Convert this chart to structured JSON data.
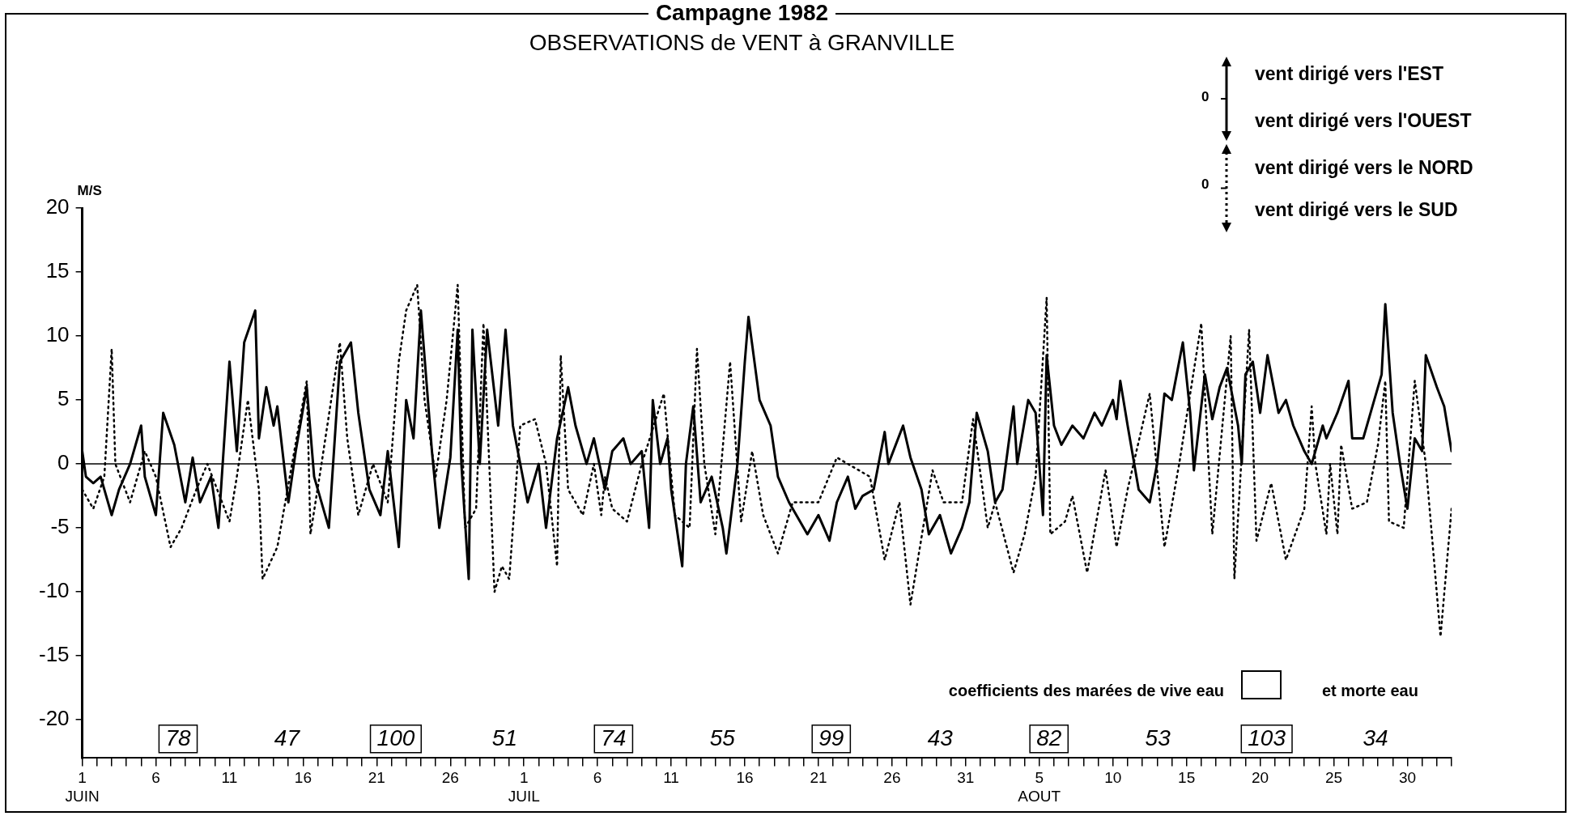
{
  "chart_data": {
    "type": "line",
    "title": "Campagne 1982",
    "subtitle": "OBSERVATIONS de VENT à GRANVILLE",
    "ylabel": "M/S",
    "ylim": [
      -23,
      20
    ],
    "yticks": [
      -20,
      -15,
      -10,
      -5,
      0,
      5,
      10,
      15,
      20
    ],
    "xlim": [
      "1982-06-01",
      "1982-09-02"
    ],
    "xticks": [
      {
        "value": "1982-06-01",
        "label": "1\nJUIN"
      },
      {
        "value": "1982-06-02",
        "label": null
      },
      {
        "value": "1982-06-03",
        "label": null
      },
      {
        "value": "1982-06-04",
        "label": null
      },
      {
        "value": "1982-06-05",
        "label": null
      },
      {
        "value": "1982-06-06",
        "label": "6"
      },
      {
        "value": "1982-06-07",
        "label": null
      },
      {
        "value": "1982-06-08",
        "label": null
      },
      {
        "value": "1982-06-09",
        "label": null
      },
      {
        "value": "1982-06-10",
        "label": null
      },
      {
        "value": "1982-06-11",
        "label": "11"
      },
      {
        "value": "1982-06-12",
        "label": null
      },
      {
        "value": "1982-06-13",
        "label": null
      },
      {
        "value": "1982-06-14",
        "label": null
      },
      {
        "value": "1982-06-15",
        "label": null
      },
      {
        "value": "1982-06-16",
        "label": "16"
      },
      {
        "value": "1982-06-17",
        "label": null
      },
      {
        "value": "1982-06-18",
        "label": null
      },
      {
        "value": "1982-06-19",
        "label": null
      },
      {
        "value": "1982-06-20",
        "label": null
      },
      {
        "value": "1982-06-21",
        "label": "21"
      },
      {
        "value": "1982-06-22",
        "label": null
      },
      {
        "value": "1982-06-23",
        "label": null
      },
      {
        "value": "1982-06-24",
        "label": null
      },
      {
        "value": "1982-06-25",
        "label": null
      },
      {
        "value": "1982-06-26",
        "label": "26"
      },
      {
        "value": "1982-06-27",
        "label": null
      },
      {
        "value": "1982-06-28",
        "label": null
      },
      {
        "value": "1982-06-29",
        "label": null
      },
      {
        "value": "1982-06-30",
        "label": null
      },
      {
        "value": "1982-07-01",
        "label": "1\nJUIL"
      },
      {
        "value": "1982-07-02",
        "label": null
      },
      {
        "value": "1982-07-03",
        "label": null
      },
      {
        "value": "1982-07-04",
        "label": null
      },
      {
        "value": "1982-07-05",
        "label": null
      },
      {
        "value": "1982-07-06",
        "label": "6"
      },
      {
        "value": "1982-07-07",
        "label": null
      },
      {
        "value": "1982-07-08",
        "label": null
      },
      {
        "value": "1982-07-09",
        "label": null
      },
      {
        "value": "1982-07-10",
        "label": null
      },
      {
        "value": "1982-07-11",
        "label": "11"
      },
      {
        "value": "1982-07-12",
        "label": null
      },
      {
        "value": "1982-07-13",
        "label": null
      },
      {
        "value": "1982-07-14",
        "label": null
      },
      {
        "value": "1982-07-15",
        "label": null
      },
      {
        "value": "1982-07-16",
        "label": "16"
      },
      {
        "value": "1982-07-17",
        "label": null
      },
      {
        "value": "1982-07-18",
        "label": null
      },
      {
        "value": "1982-07-19",
        "label": null
      },
      {
        "value": "1982-07-20",
        "label": null
      },
      {
        "value": "1982-07-21",
        "label": "21"
      },
      {
        "value": "1982-07-22",
        "label": null
      },
      {
        "value": "1982-07-23",
        "label": null
      },
      {
        "value": "1982-07-24",
        "label": null
      },
      {
        "value": "1982-07-25",
        "label": null
      },
      {
        "value": "1982-07-26",
        "label": "26"
      },
      {
        "value": "1982-07-27",
        "label": null
      },
      {
        "value": "1982-07-28",
        "label": null
      },
      {
        "value": "1982-07-29",
        "label": null
      },
      {
        "value": "1982-07-30",
        "label": null
      },
      {
        "value": "1982-07-31",
        "label": "31"
      },
      {
        "value": "1982-08-01",
        "label": null
      },
      {
        "value": "1982-08-02",
        "label": null
      },
      {
        "value": "1982-08-03",
        "label": null
      },
      {
        "value": "1982-08-04",
        "label": null
      },
      {
        "value": "1982-08-05",
        "label": "5\nAOUT"
      },
      {
        "value": "1982-08-06",
        "label": null
      },
      {
        "value": "1982-08-07",
        "label": null
      },
      {
        "value": "1982-08-08",
        "label": null
      },
      {
        "value": "1982-08-09",
        "label": null
      },
      {
        "value": "1982-08-10",
        "label": "10"
      },
      {
        "value": "1982-08-11",
        "label": null
      },
      {
        "value": "1982-08-12",
        "label": null
      },
      {
        "value": "1982-08-13",
        "label": null
      },
      {
        "value": "1982-08-14",
        "label": null
      },
      {
        "value": "1982-08-15",
        "label": "15"
      },
      {
        "value": "1982-08-16",
        "label": null
      },
      {
        "value": "1982-08-17",
        "label": null
      },
      {
        "value": "1982-08-18",
        "label": null
      },
      {
        "value": "1982-08-19",
        "label": null
      },
      {
        "value": "1982-08-20",
        "label": "20"
      },
      {
        "value": "1982-08-21",
        "label": null
      },
      {
        "value": "1982-08-22",
        "label": null
      },
      {
        "value": "1982-08-23",
        "label": null
      },
      {
        "value": "1982-08-24",
        "label": null
      },
      {
        "value": "1982-08-25",
        "label": "25"
      },
      {
        "value": "1982-08-26",
        "label": null
      },
      {
        "value": "1982-08-27",
        "label": null
      },
      {
        "value": "1982-08-28",
        "label": null
      },
      {
        "value": "1982-08-29",
        "label": null
      },
      {
        "value": "1982-08-30",
        "label": "30"
      },
      {
        "value": "1982-08-31",
        "label": null
      },
      {
        "value": "1982-09-01",
        "label": null
      },
      {
        "value": "1982-09-02",
        "label": null
      }
    ],
    "grid": false,
    "marker": "none",
    "ref_lines": [
      {
        "axis": "y",
        "value": 0,
        "color": "#000000",
        "line_style": "solid"
      }
    ],
    "series": [
      {
        "color": "#000000",
        "line_style": "solid",
        "x": [
          "1982-06-01T00:00",
          "1982-06-01T06:00",
          "1982-06-01T18:00",
          "1982-06-02T06:00",
          "1982-06-03T00:00",
          "1982-06-03T12:00",
          "1982-06-04T06:00",
          "1982-06-05T00:00",
          "1982-06-05T06:00",
          "1982-06-06T00:00",
          "1982-06-06T12:00",
          "1982-06-07T06:00",
          "1982-06-08T00:00",
          "1982-06-08T12:00",
          "1982-06-09T00:00",
          "1982-06-09T18:00",
          "1982-06-10T06:00",
          "1982-06-11T00:00",
          "1982-06-11T12:00",
          "1982-06-12T00:00",
          "1982-06-12T18:00",
          "1982-06-13T00:00",
          "1982-06-13T12:00",
          "1982-06-14T00:00",
          "1982-06-14T06:00",
          "1982-06-15T00:00",
          "1982-06-15T12:00",
          "1982-06-16T06:00",
          "1982-06-16T18:00",
          "1982-06-17T18:00",
          "1982-06-18T12:00",
          "1982-06-19T06:00",
          "1982-06-19T18:00",
          "1982-06-20T12:00",
          "1982-06-21T06:00",
          "1982-06-21T18:00",
          "1982-06-22T12:00",
          "1982-06-23T00:00",
          "1982-06-23T12:00",
          "1982-06-24T00:00",
          "1982-06-24T18:00",
          "1982-06-25T06:00",
          "1982-06-26T00:00",
          "1982-06-26T12:00",
          "1982-06-26T18:00",
          "1982-06-27T06:00",
          "1982-06-27T12:00",
          "1982-06-28T00:00",
          "1982-06-28T12:00",
          "1982-06-29T06:00",
          "1982-06-29T18:00",
          "1982-06-30T06:00",
          "1982-07-01T06:00",
          "1982-07-02T00:00",
          "1982-07-02T12:00",
          "1982-07-03T06:00",
          "1982-07-04T00:00",
          "1982-07-04T12:00",
          "1982-07-05T06:00",
          "1982-07-05T18:00",
          "1982-07-06T12:00",
          "1982-07-07T00:00",
          "1982-07-07T18:00",
          "1982-07-08T06:00",
          "1982-07-09T00:00",
          "1982-07-09T12:00",
          "1982-07-09T18:00",
          "1982-07-10T06:00",
          "1982-07-10T18:00",
          "1982-07-11T00:00",
          "1982-07-11T18:00",
          "1982-07-12T00:00",
          "1982-07-12T12:00",
          "1982-07-13T00:00",
          "1982-07-13T18:00",
          "1982-07-14T12:00",
          "1982-07-14T18:00",
          "1982-07-15T12:00",
          "1982-07-16T00:00",
          "1982-07-16T06:00",
          "1982-07-17T00:00",
          "1982-07-17T18:00",
          "1982-07-18T06:00",
          "1982-07-19T00:00",
          "1982-07-19T12:00",
          "1982-07-20T06:00",
          "1982-07-21T00:00",
          "1982-07-21T18:00",
          "1982-07-22T06:00",
          "1982-07-23T00:00",
          "1982-07-23T12:00",
          "1982-07-24T00:00",
          "1982-07-24T18:00",
          "1982-07-25T12:00",
          "1982-07-25T18:00",
          "1982-07-26T18:00",
          "1982-07-27T06:00",
          "1982-07-28T00:00",
          "1982-07-28T12:00",
          "1982-07-29T06:00",
          "1982-07-30T00:00",
          "1982-07-30T18:00",
          "1982-07-31T06:00",
          "1982-07-31T18:00",
          "1982-08-01T12:00",
          "1982-08-02T00:00",
          "1982-08-02T12:00",
          "1982-08-03T06:00",
          "1982-08-03T12:00",
          "1982-08-04T06:00",
          "1982-08-04T18:00",
          "1982-08-05T06:00",
          "1982-08-05T12:00",
          "1982-08-06T00:00",
          "1982-08-06T12:00",
          "1982-08-07T06:00",
          "1982-08-08T00:00",
          "1982-08-08T18:00",
          "1982-08-09T06:00",
          "1982-08-10T00:00",
          "1982-08-10T06:00",
          "1982-08-10T12:00",
          "1982-08-11T00:00",
          "1982-08-11T18:00",
          "1982-08-12T12:00",
          "1982-08-13T00:00",
          "1982-08-13T12:00",
          "1982-08-14T00:00",
          "1982-08-14T18:00",
          "1982-08-15T06:00",
          "1982-08-15T12:00",
          "1982-08-16T06:00",
          "1982-08-16T18:00",
          "1982-08-17T06:00",
          "1982-08-17T18:00",
          "1982-08-18T12:00",
          "1982-08-18T18:00",
          "1982-08-19T00:00",
          "1982-08-19T12:00",
          "1982-08-20T00:00",
          "1982-08-20T12:00",
          "1982-08-21T06:00",
          "1982-08-21T18:00",
          "1982-08-22T06:00",
          "1982-08-23T00:00",
          "1982-08-23T12:00",
          "1982-08-24T06:00",
          "1982-08-24T12:00",
          "1982-08-25T06:00",
          "1982-08-26T00:00",
          "1982-08-26T06:00",
          "1982-08-27T00:00",
          "1982-08-27T18:00",
          "1982-08-28T06:00",
          "1982-08-28T12:00",
          "1982-08-29T00:00",
          "1982-08-29T12:00",
          "1982-08-30T00:00",
          "1982-08-30T12:00",
          "1982-08-31T00:00",
          "1982-08-31T06:00",
          "1982-09-01T00:00",
          "1982-09-01T12:00",
          "1982-09-02T00:00"
        ],
        "values": [
          1,
          -1,
          -1.5,
          -1,
          -4,
          -2,
          0,
          3,
          -1,
          -4,
          4,
          1.5,
          -3,
          0.5,
          -3,
          -1,
          -5,
          8,
          1,
          9.5,
          12,
          2,
          6,
          3,
          4.5,
          -3,
          1,
          6,
          -1,
          -5,
          8,
          9.5,
          4,
          -2,
          -4,
          1,
          -6.5,
          5,
          2,
          12,
          1,
          -5,
          0.5,
          10.5,
          0,
          -9,
          10.5,
          0,
          10.5,
          3,
          10.5,
          3,
          -3,
          0,
          -5,
          2,
          6,
          3,
          0,
          2,
          -2,
          1,
          2,
          0,
          1,
          -5,
          5,
          0,
          2,
          -2,
          -8,
          0,
          4.5,
          -3,
          -1,
          -5,
          -7,
          0,
          8,
          11.5,
          5,
          3,
          -1,
          -3,
          -4,
          -5.5,
          -4,
          -6,
          -3,
          -1,
          -3.5,
          -2.5,
          -2,
          2.5,
          0,
          3,
          0.5,
          -2,
          -5.5,
          -4,
          -7,
          -5,
          -3,
          4,
          1,
          -3,
          -2,
          4.5,
          0,
          5,
          4,
          -4,
          8.5,
          3,
          1.5,
          3,
          2,
          4,
          3,
          5,
          3.5,
          6.5,
          3,
          -2,
          -3,
          0,
          5.5,
          5,
          9.5,
          4,
          -0.5,
          7,
          3.5,
          6,
          7.5,
          3,
          0,
          7,
          8,
          4,
          8.5,
          4,
          5,
          3,
          1,
          0,
          3,
          2,
          4,
          6.5,
          2,
          2,
          5,
          7,
          12.5,
          4,
          0,
          -3.5,
          2,
          1,
          8.5,
          6,
          4.5,
          1
        ]
      },
      {
        "color": "#000000",
        "line_style": "dotted",
        "x": [
          "1982-06-01T00:00",
          "1982-06-01T18:00",
          "1982-06-02T12:00",
          "1982-06-03T00:00",
          "1982-06-03T06:00",
          "1982-06-04T06:00",
          "1982-06-05T06:00",
          "1982-06-06T00:00",
          "1982-06-07T00:00",
          "1982-06-07T18:00",
          "1982-06-08T18:00",
          "1982-06-09T12:00",
          "1982-06-10T12:00",
          "1982-06-11T00:00",
          "1982-06-11T12:00",
          "1982-06-12T06:00",
          "1982-06-13T00:00",
          "1982-06-13T06:00",
          "1982-06-14T06:00",
          "1982-06-15T06:00",
          "1982-06-16T06:00",
          "1982-06-16T12:00",
          "1982-06-17T06:00",
          "1982-06-18T12:00",
          "1982-06-19T00:00",
          "1982-06-19T18:00",
          "1982-06-20T18:00",
          "1982-06-21T18:00",
          "1982-06-22T12:00",
          "1982-06-23T00:00",
          "1982-06-23T18:00",
          "1982-06-24T06:00",
          "1982-06-25T00:00",
          "1982-06-25T18:00",
          "1982-06-26T12:00",
          "1982-06-27T00:00",
          "1982-06-27T18:00",
          "1982-06-28T06:00",
          "1982-06-29T00:00",
          "1982-06-29T12:00",
          "1982-06-30T00:00",
          "1982-06-30T18:00",
          "1982-07-01T18:00",
          "1982-07-02T12:00",
          "1982-07-03T06:00",
          "1982-07-03T12:00",
          "1982-07-04T00:00",
          "1982-07-05T00:00",
          "1982-07-05T18:00",
          "1982-07-06T06:00",
          "1982-07-06T12:00",
          "1982-07-07T00:00",
          "1982-07-08T00:00",
          "1982-07-09T00:00",
          "1982-07-10T12:00",
          "1982-07-11T06:00",
          "1982-07-12T06:00",
          "1982-07-12T18:00",
          "1982-07-13T06:00",
          "1982-07-14T00:00",
          "1982-07-15T00:00",
          "1982-07-15T18:00",
          "1982-07-16T12:00",
          "1982-07-17T06:00",
          "1982-07-18T06:00",
          "1982-07-19T06:00",
          "1982-07-21T00:00",
          "1982-07-22T06:00",
          "1982-07-23T00:00",
          "1982-07-24T12:00",
          "1982-07-25T12:00",
          "1982-07-26T12:00",
          "1982-07-27T06:00",
          "1982-07-28T18:00",
          "1982-07-29T12:00",
          "1982-07-30T18:00",
          "1982-07-31T12:00",
          "1982-08-01T12:00",
          "1982-08-02T00:00",
          "1982-08-03T06:00",
          "1982-08-04T00:00",
          "1982-08-04T18:00",
          "1982-08-05T12:00",
          "1982-08-05T18:00",
          "1982-08-06T18:00",
          "1982-08-07T06:00",
          "1982-08-08T06:00",
          "1982-08-09T12:00",
          "1982-08-10T06:00",
          "1982-08-11T00:00",
          "1982-08-12T12:00",
          "1982-08-13T12:00",
          "1982-08-14T12:00",
          "1982-08-16T00:00",
          "1982-08-16T18:00",
          "1982-08-18T00:00",
          "1982-08-18T06:00",
          "1982-08-19T06:00",
          "1982-08-19T18:00",
          "1982-08-20T18:00",
          "1982-08-21T18:00",
          "1982-08-23T00:00",
          "1982-08-23T12:00",
          "1982-08-23T18:00",
          "1982-08-24T12:00",
          "1982-08-24T18:00",
          "1982-08-25T06:00",
          "1982-08-25T12:00",
          "1982-08-26T06:00",
          "1982-08-27T06:00",
          "1982-08-28T00:00",
          "1982-08-28T12:00",
          "1982-08-28T18:00",
          "1982-08-29T18:00",
          "1982-08-30T12:00",
          "1982-08-31T06:00",
          "1982-09-01T06:00",
          "1982-09-02T00:00"
        ],
        "values": [
          -2,
          -3.5,
          -1,
          9,
          0,
          -3,
          1,
          -1,
          -6.5,
          -5,
          -2,
          0,
          -3,
          -4.5,
          -1,
          5,
          -2,
          -9,
          -6.5,
          0,
          6.5,
          -5.5,
          0,
          9.5,
          2,
          -4,
          0,
          -3,
          8,
          12,
          14,
          5,
          -1,
          5,
          14,
          -5,
          -3.5,
          11,
          -10,
          -8,
          -9,
          3,
          3.5,
          0,
          -8,
          8.5,
          -2,
          -4,
          0,
          -4,
          -1,
          -3.5,
          -4.5,
          0,
          5.5,
          -4,
          -5,
          9,
          0,
          -5.5,
          8,
          -4.5,
          1,
          -4,
          -7,
          -3,
          -3,
          0.5,
          0,
          -1,
          -7.5,
          -3,
          -11,
          -0.5,
          -3,
          -3,
          3.5,
          -5,
          -3,
          -8.5,
          -5.5,
          -1,
          13,
          -5.5,
          -4.5,
          -2.5,
          -8.5,
          -0.5,
          -6.5,
          -2,
          5.5,
          -6.5,
          0,
          11,
          -5.5,
          10,
          -9,
          10.5,
          -6,
          -1.5,
          -7.5,
          -3.5,
          4.5,
          0,
          -5.5,
          0,
          -5.5,
          1.5,
          -3.5,
          -3,
          1.5,
          6.5,
          -4.5,
          -5,
          6.5,
          0,
          -13.5,
          -3.5
        ]
      }
    ],
    "annotations": [
      "vent dirigé vers l'EST",
      "vent dirigé vers l'OUEST",
      "vent dirigé vers le NORD",
      "vent dirigé vers le SUD",
      "0",
      "0",
      "coefficients des marées de vive eau",
      "et morte eau",
      "78",
      "47",
      "100",
      "51",
      "74",
      "55",
      "99",
      "43",
      "82",
      "53",
      "103",
      "34"
    ]
  }
}
